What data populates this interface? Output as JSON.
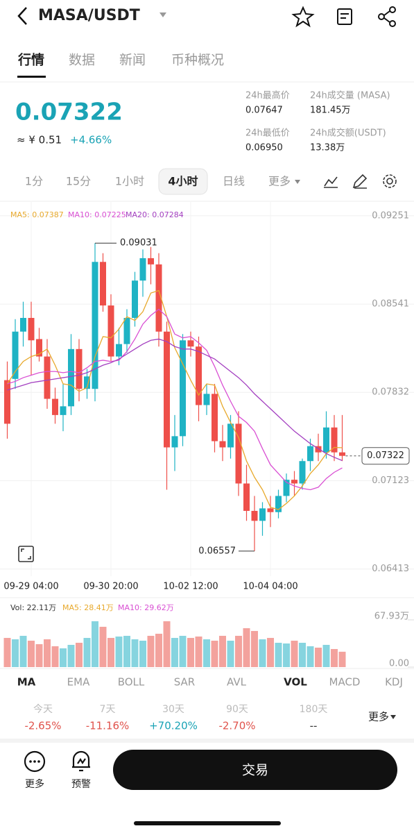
{
  "header": {
    "pair": "MASA/USDT"
  },
  "tabs": [
    "行情",
    "数据",
    "新闻",
    "币种概况"
  ],
  "price": {
    "last": "0.07322",
    "cny": "≈ ¥ 0.51",
    "change": "+4.66%"
  },
  "stats": [
    {
      "label": "24h最高价",
      "value": "0.07647"
    },
    {
      "label": "24h成交量 (MASA)",
      "value": "181.45万"
    },
    {
      "label": "24h最低价",
      "value": "0.06950"
    },
    {
      "label": "24h成交额(USDT)",
      "value": "13.38万"
    }
  ],
  "timeframes": [
    "1分",
    "15分",
    "1小时",
    "4小时",
    "日线",
    "更多"
  ],
  "chart_data": [
    {
      "type": "candlestick",
      "categories": [
        null,
        null,
        null,
        "09-29 04:00",
        null,
        null,
        null,
        null,
        null,
        null,
        null,
        null,
        null,
        "09-30 20:00",
        null,
        null,
        null,
        null,
        null,
        null,
        null,
        null,
        null,
        "10-02 12:00",
        null,
        null,
        null,
        null,
        null,
        null,
        null,
        null,
        null,
        "10-04 04:00",
        null,
        null,
        null,
        null,
        null,
        null,
        null,
        null,
        null
      ],
      "open": [
        0.0793,
        0.0794,
        0.0832,
        0.0843,
        0.0826,
        0.0812,
        0.0778,
        0.0765,
        0.0772,
        0.0818,
        0.0786,
        0.0786,
        0.0888,
        0.0853,
        0.0812,
        0.0822,
        0.0843,
        0.0873,
        0.0891,
        0.0886,
        0.0832,
        0.0739,
        0.0748,
        0.0825,
        0.082,
        0.0773,
        0.0782,
        0.0744,
        0.0739,
        0.0758,
        0.071,
        0.0688,
        0.068,
        0.069,
        0.0687,
        0.07,
        0.0713,
        0.071,
        0.0728,
        0.074,
        0.0735,
        0.0755,
        0.0735
      ],
      "high": [
        0.0808,
        0.0842,
        0.0856,
        0.0856,
        0.0835,
        0.0826,
        0.0787,
        0.079,
        0.083,
        0.0826,
        0.0802,
        0.09031,
        0.0895,
        0.0862,
        0.0835,
        0.085,
        0.088,
        0.0898,
        0.09,
        0.0895,
        0.084,
        0.0765,
        0.083,
        0.0832,
        0.0828,
        0.079,
        0.079,
        0.0757,
        0.0765,
        0.0768,
        0.0725,
        0.07,
        0.0695,
        0.07,
        0.0705,
        0.0718,
        0.072,
        0.073,
        0.0746,
        0.075,
        0.0768,
        0.0765,
        0.0765
      ],
      "low": [
        0.0746,
        0.0786,
        0.082,
        0.0797,
        0.0808,
        0.077,
        0.0758,
        0.0752,
        0.0765,
        0.0776,
        0.0778,
        0.0776,
        0.0848,
        0.0808,
        0.0805,
        0.0815,
        0.0836,
        0.086,
        0.087,
        0.082,
        0.0705,
        0.072,
        0.074,
        0.0812,
        0.076,
        0.0765,
        0.0735,
        0.0728,
        0.073,
        0.07,
        0.068,
        0.06557,
        0.0668,
        0.0675,
        0.0682,
        0.0695,
        0.07,
        0.0705,
        0.072,
        0.0728,
        0.073,
        0.0728,
        0.0728
      ],
      "close": [
        0.0758,
        0.0832,
        0.0843,
        0.0825,
        0.0812,
        0.0778,
        0.0765,
        0.0772,
        0.0818,
        0.0786,
        0.0796,
        0.0888,
        0.0853,
        0.0812,
        0.0822,
        0.0843,
        0.0873,
        0.0891,
        0.0886,
        0.0832,
        0.0739,
        0.0748,
        0.0825,
        0.082,
        0.0773,
        0.0782,
        0.0744,
        0.0739,
        0.0758,
        0.071,
        0.0688,
        0.068,
        0.069,
        0.0687,
        0.07,
        0.0713,
        0.071,
        0.0728,
        0.074,
        0.0735,
        0.0755,
        0.0735,
        0.07322
      ],
      "up_color": "#1fb3c4",
      "down_color": "#ee4f4a",
      "ylim": [
        0.0635,
        0.0935
      ],
      "yticks": [
        0.06413,
        0.07123,
        0.07832,
        0.08541,
        0.09251
      ],
      "grid": true,
      "series": [
        {
          "name": "MA5: 0.07387",
          "color": "#e8a92c",
          "values": [
            0.079,
            0.08,
            0.0808,
            0.0812,
            0.0814,
            0.0818,
            0.0805,
            0.079,
            0.0789,
            0.0784,
            0.0787,
            0.0812,
            0.0828,
            0.0827,
            0.0834,
            0.0844,
            0.0841,
            0.0848,
            0.0863,
            0.0865,
            0.0844,
            0.0819,
            0.0806,
            0.0793,
            0.0781,
            0.079,
            0.0789,
            0.0772,
            0.0759,
            0.0747,
            0.0728,
            0.0715,
            0.0705,
            0.0691,
            0.0689,
            0.0694,
            0.07,
            0.0708,
            0.0718,
            0.0725,
            0.0734,
            0.0739,
            0.07387
          ]
        },
        {
          "name": "MA10: 0.07225",
          "color": "#d94fd3",
          "values": [
            0.079,
            0.0792,
            0.0795,
            0.0797,
            0.0799,
            0.08,
            0.08,
            0.0799,
            0.08,
            0.0799,
            0.0803,
            0.0808,
            0.0809,
            0.0808,
            0.0809,
            0.0816,
            0.0826,
            0.0838,
            0.0845,
            0.085,
            0.0844,
            0.083,
            0.0827,
            0.0828,
            0.0823,
            0.0817,
            0.0804,
            0.0789,
            0.0776,
            0.0764,
            0.0759,
            0.0752,
            0.0738,
            0.0725,
            0.0718,
            0.0711,
            0.0708,
            0.0706,
            0.0705,
            0.0707,
            0.0714,
            0.0719,
            0.07225
          ]
        },
        {
          "name": "MA20: 0.07284",
          "color": "#a33fc0",
          "values": [
            0.0785,
            0.0787,
            0.0789,
            0.0791,
            0.0792,
            0.0793,
            0.0794,
            0.0795,
            0.0796,
            0.0797,
            0.0799,
            0.0802,
            0.0805,
            0.0807,
            0.081,
            0.0814,
            0.0818,
            0.0822,
            0.0825,
            0.0826,
            0.0824,
            0.082,
            0.0818,
            0.0818,
            0.0816,
            0.0813,
            0.081,
            0.0805,
            0.08,
            0.0795,
            0.0789,
            0.0782,
            0.0776,
            0.077,
            0.0764,
            0.0758,
            0.0752,
            0.0747,
            0.0742,
            0.0738,
            0.0734,
            0.0731,
            0.07284
          ]
        }
      ]
    },
    {
      "type": "bar",
      "legend": [
        {
          "text": "Vol: 22.11万",
          "color": "#333333"
        },
        {
          "text": "MA5: 28.41万",
          "color": "#e8a92c"
        },
        {
          "text": "MA10: 29.62万",
          "color": "#d94fd3"
        }
      ],
      "values": [
        420000,
        400000,
        450000,
        380000,
        330000,
        400000,
        300000,
        270000,
        320000,
        350000,
        420000,
        660000,
        580000,
        420000,
        440000,
        450000,
        400000,
        380000,
        450000,
        480000,
        660000,
        420000,
        450000,
        420000,
        440000,
        400000,
        380000,
        450000,
        380000,
        450000,
        560000,
        520000,
        400000,
        420000,
        350000,
        340000,
        380000,
        350000,
        300000,
        280000,
        320000,
        260000,
        221100
      ],
      "up_color": "#86d4df",
      "down_color": "#f3a29d",
      "ylim": [
        0,
        679300
      ],
      "yticks": [
        {
          "value": 679300,
          "label": "67.93万"
        },
        {
          "value": 0,
          "label": "0.00"
        }
      ]
    }
  ],
  "indicators": [
    "MA",
    "EMA",
    "BOLL",
    "SAR",
    "AVL",
    "VOL",
    "MACD",
    "KDJ"
  ],
  "performance": {
    "periods": [
      {
        "label": "今天",
        "change": "-2.65%",
        "color": "#e0524b"
      },
      {
        "label": "7天",
        "change": "-11.16%",
        "color": "#e0524b"
      },
      {
        "label": "30天",
        "change": "+70.20%",
        "color": "#1aa3b5"
      },
      {
        "label": "90天",
        "change": "-2.70%",
        "color": "#e0524b"
      },
      {
        "label": "180天",
        "change": "--",
        "color": "#333333"
      }
    ],
    "more": "更多"
  },
  "actions": {
    "more": "更多",
    "alert": "预警",
    "trade": "交易"
  }
}
